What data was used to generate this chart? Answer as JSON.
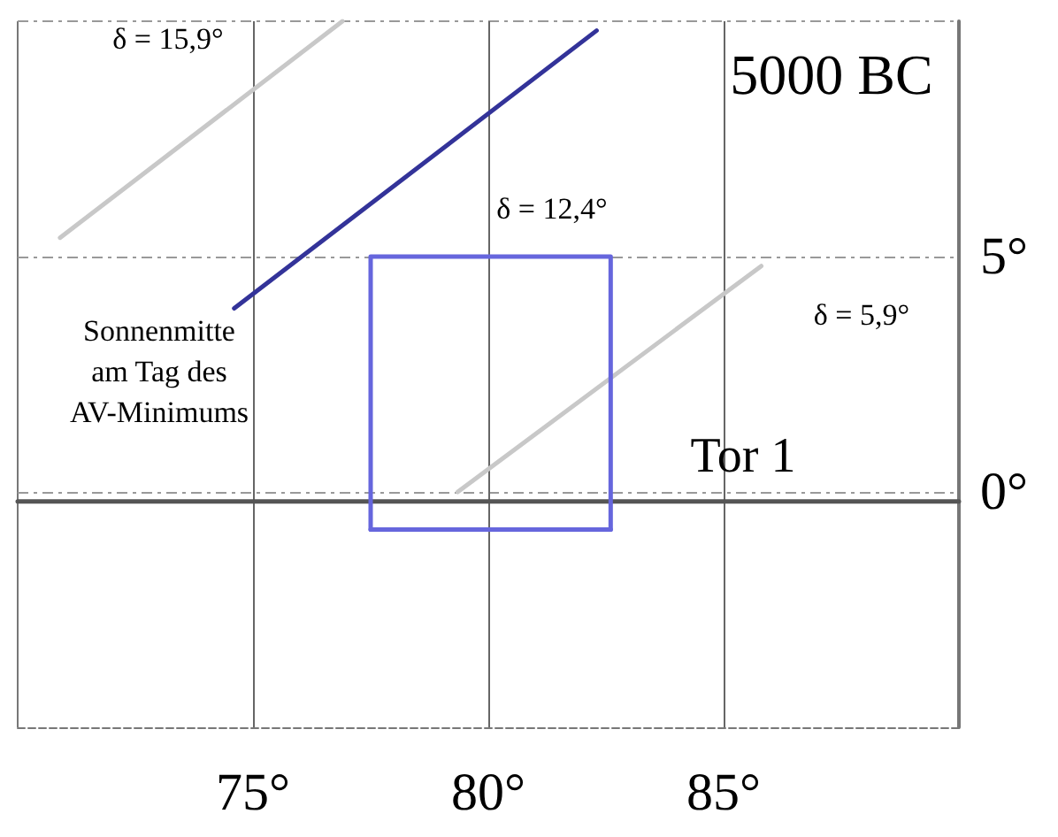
{
  "chart_data": {
    "type": "line",
    "xlim": [
      70,
      90
    ],
    "ylim": [
      -5,
      10
    ],
    "xticks": [
      {
        "value": 75,
        "label": "75°"
      },
      {
        "value": 80,
        "label": "80°"
      },
      {
        "value": 85,
        "label": "85°"
      }
    ],
    "yticks": [
      {
        "value": 0,
        "label": "0°"
      },
      {
        "value": 5,
        "label": "5°"
      }
    ],
    "grid": true,
    "marker": "none",
    "series": [
      {
        "color": "#c8c8c8",
        "x": [
          70.9,
          76.9
        ],
        "values": [
          5.4,
          10
        ]
      },
      {
        "color": "#333399",
        "x": [
          74.6,
          82.3
        ],
        "values": [
          3.9,
          9.8
        ]
      },
      {
        "color": "#c8c8c8",
        "x": [
          79.35,
          85.8
        ],
        "values": [
          0,
          4.8
        ]
      },
      {
        "color": "#555555",
        "x": [
          70,
          90
        ],
        "values": [
          -0.2,
          -0.2
        ]
      },
      {
        "color": "#6666dd",
        "x": [
          77.5,
          77.5,
          82.6,
          82.6
        ],
        "values": [
          -0.8,
          5,
          5,
          -0.8
        ]
      },
      {
        "color": "#6666dd",
        "x": [
          77.5,
          82.6
        ],
        "values": [
          -0.8,
          -0.8
        ]
      }
    ],
    "annotations": [
      "δ = 15,9°",
      "δ = 12,4°",
      "δ = 5,9°",
      "5000 BC",
      "Tor 1",
      "Sonnenmitte\nam Tag des\nAV-Minimums"
    ]
  }
}
